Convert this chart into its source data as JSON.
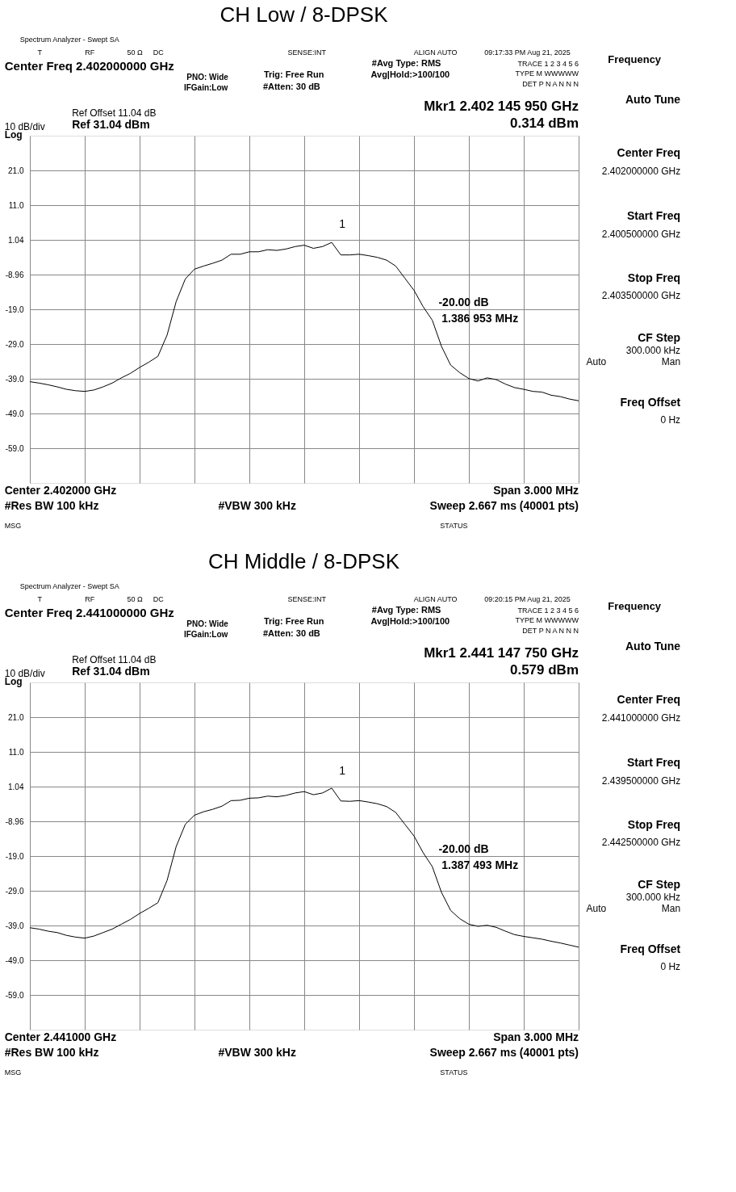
{
  "chart_data": [
    {
      "type": "line",
      "title": "CH Low / 8-DPSK",
      "color": "#000000",
      "line_style": "solid",
      "grid": true,
      "tick_labels": "y",
      "categories": [
        null,
        null,
        null,
        null,
        null,
        null,
        null,
        null,
        null,
        null,
        null,
        null,
        null,
        null,
        null,
        null,
        null,
        null,
        null,
        null,
        null,
        null,
        null,
        null,
        null,
        null,
        null,
        null,
        null,
        null,
        null,
        null,
        null,
        null,
        null,
        null,
        null,
        null,
        null,
        null,
        null,
        null,
        null,
        null,
        null,
        null,
        null,
        null,
        null,
        null,
        null,
        null,
        null,
        null,
        null,
        null,
        null,
        null,
        null,
        null,
        null
      ],
      "values": [
        -39.8,
        -40.2,
        -40.7,
        -41.3,
        -42.0,
        -42.4,
        -42.6,
        -42.2,
        -41.3,
        -40.2,
        -38.7,
        -37.4,
        -35.7,
        -34.2,
        -32.5,
        -26.4,
        -16.7,
        -10.2,
        -7.4,
        -6.5,
        -5.7,
        -4.8,
        -3.1,
        -3.1,
        -2.4,
        -2.4,
        -1.8,
        -2.0,
        -1.6,
        -0.9,
        -0.5,
        -1.4,
        -0.9,
        0.3,
        -3.3,
        -3.3,
        -3.1,
        -3.5,
        -4.0,
        -4.8,
        -6.5,
        -10.0,
        -13.5,
        -18.2,
        -22.1,
        -29.6,
        -35.0,
        -37.2,
        -38.9,
        -39.6,
        -38.7,
        -39.2,
        -40.5,
        -41.5,
        -42.0,
        -42.6,
        -42.8,
        -43.7,
        -44.1,
        -44.8,
        -45.3
      ],
      "ylim": [
        -68.96,
        31.04
      ],
      "yticks": [
        {
          "value": 21,
          "label": "21.0"
        },
        {
          "value": 11,
          "label": "11.0"
        },
        1.04,
        -8.96,
        {
          "value": -19,
          "label": "-19.0"
        },
        {
          "value": -29,
          "label": "-29.0"
        },
        {
          "value": -39,
          "label": "-39.0"
        },
        {
          "value": -49,
          "label": "-49.0"
        },
        {
          "value": -59,
          "label": "-59.0"
        }
      ],
      "annotations": [
        "Spectrum Analyzer - Swept SA",
        "T",
        "RF",
        "50 Ω",
        "DC",
        "SENSE:INT",
        "ALIGN AUTO",
        "09:17:33 PM Aug 21, 2025",
        "Center Freq 2.402000000 GHz",
        "PNO: Wide",
        "IFGain:Low",
        "Trig: Free Run",
        "#Atten: 30 dB",
        "#Avg Type: RMS",
        "Avg|Hold:>100/100",
        "TRACE 1 2 3 4 5 6",
        "TYPE M WWWWW",
        "DET P N A N N N",
        "Ref Offset 11.04 dB",
        "Mkr1 2.402 145 950 GHz",
        "0.314 dBm",
        "10 dB/div",
        "Ref 31.04 dBm",
        "Log",
        "1",
        "-20.00 dB",
        "1.386 953 MHz",
        "Center 2.402000 GHz",
        "Span 3.000 MHz",
        "#Res BW 100 kHz",
        "#VBW 300 kHz",
        "Sweep  2.667 ms (40001 pts)",
        "MSG",
        "STATUS",
        "Frequency",
        "Auto Tune",
        "Center Freq",
        "2.402000000 GHz",
        "Start Freq",
        "2.400500000 GHz",
        "Stop Freq",
        "2.403500000 GHz",
        "CF Step",
        "300.000 kHz",
        "Auto",
        "Man",
        "Freq Offset",
        "0 Hz"
      ]
    },
    {
      "type": "line",
      "title": "CH Middle / 8-DPSK",
      "color": "#000000",
      "line_style": "solid",
      "grid": true,
      "tick_labels": "y",
      "categories": [
        null,
        null,
        null,
        null,
        null,
        null,
        null,
        null,
        null,
        null,
        null,
        null,
        null,
        null,
        null,
        null,
        null,
        null,
        null,
        null,
        null,
        null,
        null,
        null,
        null,
        null,
        null,
        null,
        null,
        null,
        null,
        null,
        null,
        null,
        null,
        null,
        null,
        null,
        null,
        null,
        null,
        null,
        null,
        null,
        null,
        null,
        null,
        null,
        null,
        null,
        null,
        null,
        null,
        null,
        null,
        null,
        null,
        null,
        null,
        null,
        null
      ],
      "values": [
        -39.6,
        -40.0,
        -40.6,
        -41.0,
        -41.8,
        -42.3,
        -42.6,
        -42.0,
        -41.0,
        -40.0,
        -38.6,
        -37.2,
        -35.5,
        -34.0,
        -32.4,
        -26.0,
        -16.2,
        -9.8,
        -7.2,
        -6.2,
        -5.5,
        -4.6,
        -3.0,
        -2.9,
        -2.3,
        -2.2,
        -1.7,
        -1.9,
        -1.5,
        -0.8,
        -0.4,
        -1.3,
        -0.8,
        0.6,
        -3.1,
        -3.2,
        -3.0,
        -3.4,
        -3.9,
        -4.7,
        -6.4,
        -9.8,
        -13.2,
        -18.0,
        -22.0,
        -29.4,
        -34.6,
        -37.0,
        -38.6,
        -39.2,
        -38.9,
        -39.5,
        -40.6,
        -41.6,
        -42.1,
        -42.5,
        -42.9,
        -43.5,
        -44.0,
        -44.6,
        -45.2
      ],
      "ylim": [
        -68.96,
        31.04
      ],
      "yticks": [
        {
          "value": 21,
          "label": "21.0"
        },
        {
          "value": 11,
          "label": "11.0"
        },
        1.04,
        -8.96,
        {
          "value": -19,
          "label": "-19.0"
        },
        {
          "value": -29,
          "label": "-29.0"
        },
        {
          "value": -39,
          "label": "-39.0"
        },
        {
          "value": -49,
          "label": "-49.0"
        },
        {
          "value": -59,
          "label": "-59.0"
        }
      ],
      "annotations": [
        "Spectrum Analyzer - Swept SA",
        "T",
        "RF",
        "50 Ω",
        "DC",
        "SENSE:INT",
        "ALIGN AUTO",
        "09:20:15 PM Aug 21, 2025",
        "Center Freq 2.441000000 GHz",
        "PNO: Wide",
        "IFGain:Low",
        "Trig: Free Run",
        "#Atten: 30 dB",
        "#Avg Type: RMS",
        "Avg|Hold:>100/100",
        "TRACE 1 2 3 4 5 6",
        "TYPE M WWWWW",
        "DET P N A N N N",
        "Ref Offset 11.04 dB",
        "Mkr1 2.441 147 750 GHz",
        "0.579 dBm",
        "10 dB/div",
        "Ref 31.04 dBm",
        "Log",
        "1",
        "-20.00 dB",
        "1.387 493 MHz",
        "Center 2.441000 GHz",
        "Span 3.000 MHz",
        "#Res BW 100 kHz",
        "#VBW 300 kHz",
        "Sweep  2.667 ms (40001 pts)",
        "MSG",
        "STATUS",
        "Frequency",
        "Auto Tune",
        "Center Freq",
        "2.441000000 GHz",
        "Start Freq",
        "2.439500000 GHz",
        "Stop Freq",
        "2.442500000 GHz",
        "CF Step",
        "300.000 kHz",
        "Auto",
        "Man",
        "Freq Offset",
        "0 Hz"
      ]
    }
  ]
}
